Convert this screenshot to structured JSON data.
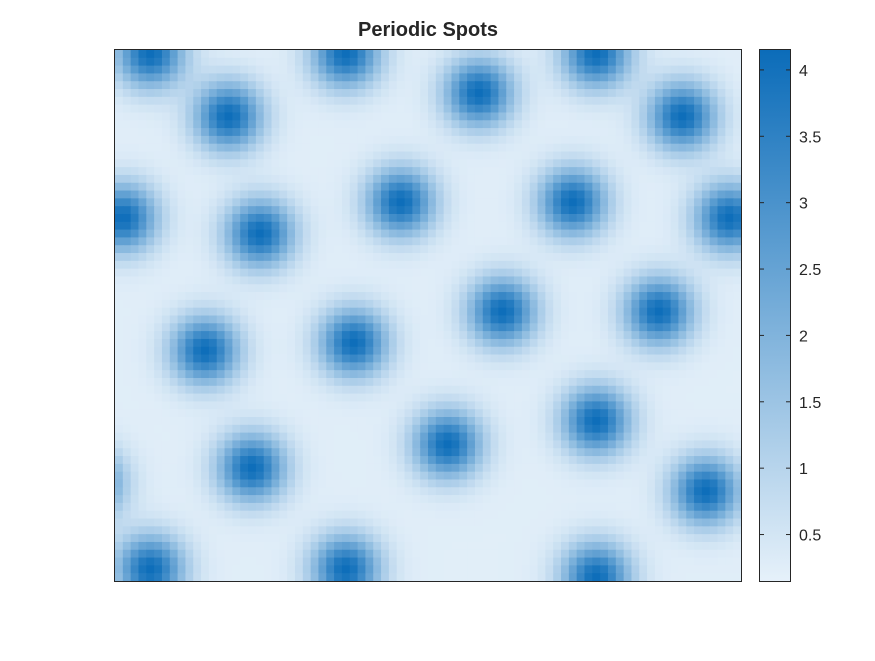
{
  "chart_data": {
    "type": "heatmap",
    "title": "Periodic Spots",
    "xlabel": "",
    "ylabel": "",
    "colorbar": {
      "min": 0.15,
      "max": 4.15,
      "ticks": [
        0.5,
        1,
        1.5,
        2,
        2.5,
        3,
        3.5,
        4
      ],
      "tick_labels": [
        "0.5",
        "1",
        "1.5",
        "2",
        "2.5",
        "3",
        "3.5",
        "4"
      ],
      "colormap": [
        "#e6f1fa",
        "#0b6cb9"
      ]
    },
    "grid": {
      "columns": 80,
      "rows": 68,
      "background": 0.25,
      "peak": 4.1,
      "spot_radius_cells": 3.0
    },
    "spots": [
      {
        "col": 4.5,
        "row": 0.5
      },
      {
        "col": 29.5,
        "row": 0.5
      },
      {
        "col": 61.5,
        "row": 0.5
      },
      {
        "col": 46.5,
        "row": 5.5
      },
      {
        "col": 14.5,
        "row": 8.5
      },
      {
        "col": 72.5,
        "row": 8.5
      },
      {
        "col": 36.5,
        "row": 19.5
      },
      {
        "col": 58.5,
        "row": 19.5
      },
      {
        "col": 1.0,
        "row": 21.5
      },
      {
        "col": 78.5,
        "row": 21.5
      },
      {
        "col": 18.5,
        "row": 23.5
      },
      {
        "col": 49.5,
        "row": 33.5
      },
      {
        "col": 69.5,
        "row": 33.5
      },
      {
        "col": 30.5,
        "row": 37.5
      },
      {
        "col": 11.5,
        "row": 38.5
      },
      {
        "col": 61.5,
        "row": 47.5
      },
      {
        "col": 42.5,
        "row": 50.5
      },
      {
        "col": 17.5,
        "row": 53.5
      },
      {
        "col": 75.5,
        "row": 56.5
      },
      {
        "col": -3.5,
        "row": 55.5
      },
      {
        "col": 4.5,
        "row": 66.5
      },
      {
        "col": 29.5,
        "row": 66.5
      },
      {
        "col": 61.5,
        "row": 67.5
      }
    ]
  }
}
